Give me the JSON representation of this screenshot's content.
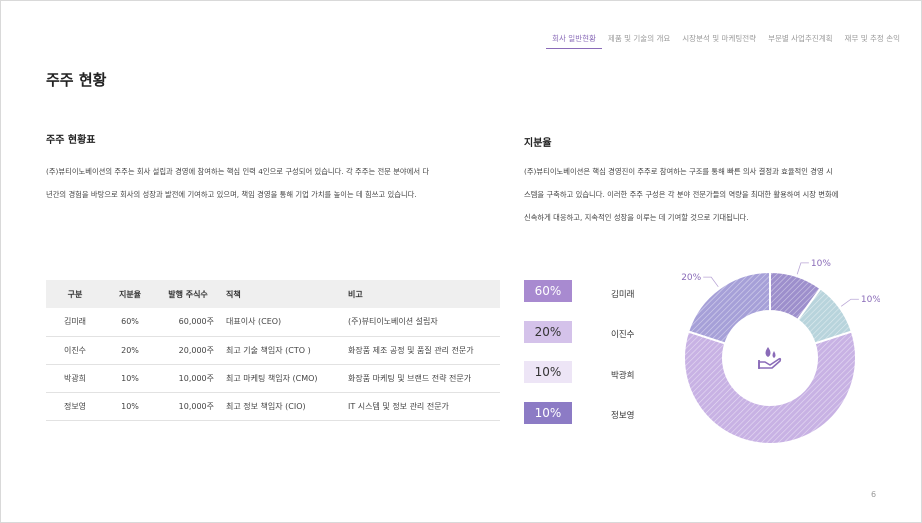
{
  "nav": {
    "tabs": [
      {
        "label": "회사 일반현황",
        "active": true
      },
      {
        "label": "제품 및 기술의 개요",
        "active": false
      },
      {
        "label": "시장분석 및 마케팅전략",
        "active": false
      },
      {
        "label": "부문별 사업추진계획",
        "active": false
      },
      {
        "label": "재무 및 추정 손익",
        "active": false
      }
    ]
  },
  "page": {
    "title": "주주 현황",
    "number": "6"
  },
  "left": {
    "heading": "주주 현황표",
    "para_line1": "(주)뷰티이노베이션의 주주는 회사 설립과 경영에 참여하는 핵심 인력 4인으로 구성되어 있습니다. 각 주주는 전문 분야에서 다",
    "para_line2": "년간의 경험을 바탕으로 회사의 성장과 발전에 기여하고 있으며, 책임 경영을 통해 기업 가치를 높이는 데 힘쓰고 있습니다."
  },
  "right": {
    "heading": "지분율",
    "para_line1": "(주)뷰티이노베이션은 핵심 경영진이 주주로 참여하는 구조를 통해 빠른 의사 결정과 효율적인 경영 시",
    "para_line2": "스템을 구축하고 있습니다. 이러한 주주 구성은 각 분야 전문가들의 역량을 최대한 활용하여 시장 변화에",
    "para_line3": "신속하게 대응하고, 지속적인 성장을 이루는 데 기여할 것으로 기대됩니다."
  },
  "table": {
    "headers": [
      "구분",
      "지분율",
      "발행 주식수",
      "직책",
      "비고"
    ],
    "rows": [
      [
        "김미래",
        "60%",
        "60,000주",
        "대표이사 (CEO)",
        "(주)뷰티이노베이션 설립자"
      ],
      [
        "이진수",
        "20%",
        "20,000주",
        "최고 기술 책임자 (CTO )",
        "화장품 제조 공정 및 품질 관리 전문가"
      ],
      [
        "박광희",
        "10%",
        "10,000주",
        "최고 마케팅 책임자 (CMO)",
        "화장품 마케팅 및 브랜드 전략 전문가"
      ],
      [
        "정보영",
        "10%",
        "10,000주",
        "최고 정보 책임자 (CIO)",
        "IT 시스템 및 정보 관리 전문가"
      ]
    ]
  },
  "legend": [
    {
      "pct": "60%",
      "name": "김미래",
      "bg": "#a88ad0",
      "fg": "#ffffff"
    },
    {
      "pct": "20%",
      "name": "이진수",
      "bg": "#d4c2ea",
      "fg": "#333333"
    },
    {
      "pct": "10%",
      "name": "박광희",
      "bg": "#ede5f6",
      "fg": "#333333"
    },
    {
      "pct": "10%",
      "name": "정보영",
      "bg": "#8c7bc5",
      "fg": "#ffffff"
    }
  ],
  "chart_data": {
    "type": "pie",
    "donut": true,
    "categories": [
      "김미래",
      "이진수",
      "박광희",
      "정보영"
    ],
    "values": [
      60,
      20,
      10,
      10
    ],
    "labels": [
      "60%",
      "20%",
      "10%",
      "10%"
    ],
    "colors": [
      "#c8b2e4",
      "#a6a0d8",
      "#9d8fcc",
      "#b8d4dc"
    ],
    "center_icon": "hand-with-drop-icon"
  }
}
